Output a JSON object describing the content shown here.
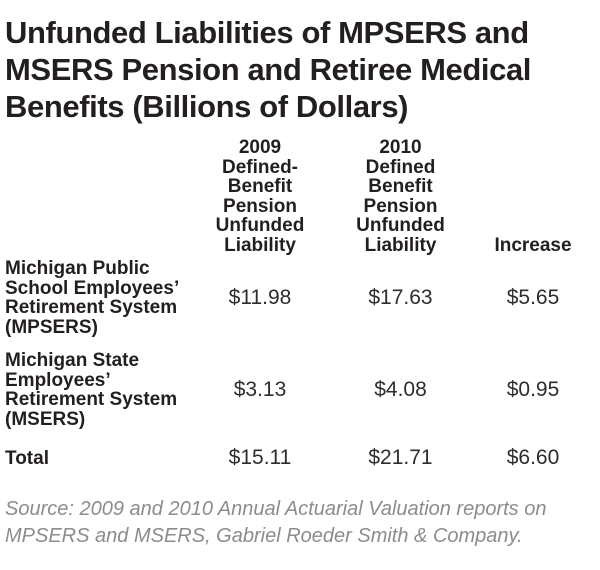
{
  "chart_data": {
    "type": "table",
    "title": "Unfunded Liabilities of MPSERS and MSERS Pension and Retiree Medical Benefits (Billions of Dollars)",
    "title_lines": [
      "Unfunded Liabilities of MPSERS and",
      "MSERS Pension and Retiree Medical",
      "Benefits (Billions of Dollars)"
    ],
    "units": "Billions of Dollars",
    "columns": [
      {
        "key": "entity",
        "header": "",
        "header_display": ""
      },
      {
        "key": "y2009",
        "header": "2009 Defined-Benefit Pension Unfunded Liability",
        "header_display": "2009\nDefined-\nBenefit\nPension\nUnfunded\nLiability"
      },
      {
        "key": "y2010",
        "header": "2010 Defined Benefit Pension Unfunded Liability",
        "header_display": "2010\nDefined\nBenefit\nPension\nUnfunded\nLiability"
      },
      {
        "key": "increase",
        "header": "Increase",
        "header_display": "Increase"
      }
    ],
    "rows": [
      {
        "label": "Michigan Public School Employees’ Retirement System (MPSERS)",
        "label_display": "Michigan Public\nSchool Employees’\nRetirement System\n(MPSERS)",
        "v2009": "$11.98",
        "v2010": "$17.63",
        "increase": "$5.65"
      },
      {
        "label": "Michigan State Employees’ Retirement System (MSERS)",
        "label_display": "Michigan State\nEmployees’\nRetirement System\n(MSERS)",
        "v2009": "$3.13",
        "v2010": "$4.08",
        "increase": "$0.95"
      },
      {
        "label": "Total",
        "label_display": "Total",
        "v2009": "$15.11",
        "v2010": "$21.71",
        "increase": "$6.60"
      }
    ],
    "values_numeric": {
      "mpsers": [
        11.98,
        17.63,
        5.65
      ],
      "msers": [
        3.13,
        4.08,
        0.95
      ],
      "total": [
        15.11,
        21.71,
        6.6
      ]
    },
    "source_note": "Source: 2009 and 2010 Annual Actuarial Valuation reports on\nMPSERS and MSERS, Gabriel Roeder Smith & Company."
  },
  "colors": {
    "background": "#ffffff",
    "heading_text": "#231f20",
    "value_text": "#302c2d",
    "source_text": "#8c8c8c"
  }
}
